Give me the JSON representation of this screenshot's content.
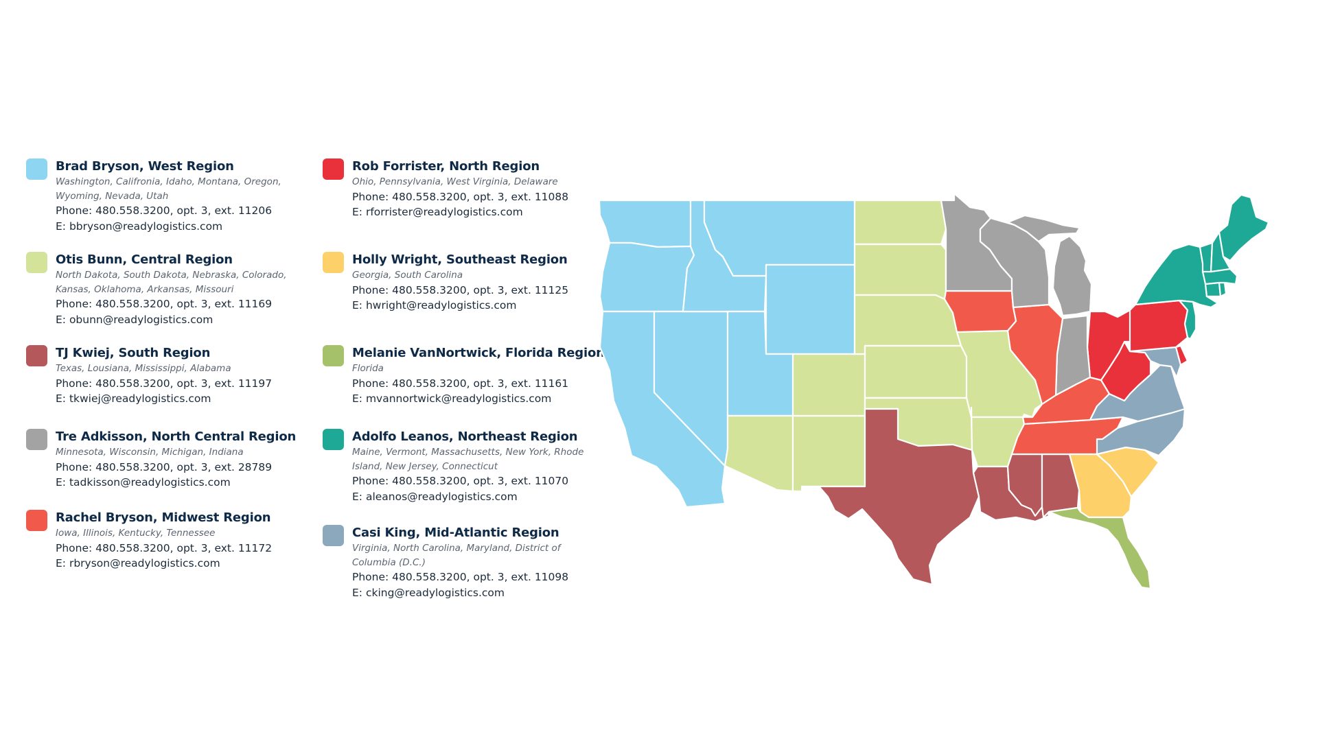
{
  "regions": [
    {
      "id": "west",
      "title": "Brad Bryson, West Region",
      "states": "Washington, Califronia, Idaho, Montana, Oregon, Wyoming, Nevada, Utah",
      "phone": "Phone: 480.558.3200, opt. 3, ext. 11206",
      "email": "E: bbryson@readylogistics.com",
      "color": "#8dd5f0"
    },
    {
      "id": "central",
      "title": "Otis Bunn, Central Region",
      "states": "North Dakota, South Dakota, Nebraska, Colorado, Kansas, Oklahoma, Arkansas, Missouri",
      "phone": "Phone: 480.558.3200, opt. 3, ext. 11169",
      "email": "E: obunn@readylogistics.com",
      "color": "#d3e49a"
    },
    {
      "id": "south",
      "title": "TJ Kwiej, South Region",
      "states": "Texas, Lousiana, Mississippi, Alabama",
      "phone": "Phone: 480.558.3200, opt. 3, ext. 11197",
      "email": "E: tkwiej@readylogistics.com",
      "color": "#b4585b"
    },
    {
      "id": "north-central",
      "title": "Tre Adkisson, North Central Region",
      "states": "Minnesota, Wisconsin, Michigan, Indiana",
      "phone": "Phone: 480.558.3200, opt. 3, ext. 28789",
      "email": "E: tadkisson@readylogistics.com",
      "color": "#a3a3a3"
    },
    {
      "id": "midwest",
      "title": "Rachel Bryson, Midwest Region",
      "states": "Iowa, Illinois, Kentucky, Tennessee",
      "phone": "Phone: 480.558.3200, opt. 3, ext. 11172",
      "email": "E: rbryson@readylogistics.com",
      "color": "#f15a4a"
    },
    {
      "id": "north",
      "title": "Rob Forrister, North Region",
      "states": "Ohio, Pennsylvania, West Virginia, Delaware",
      "phone": "Phone: 480.558.3200, opt. 3, ext. 11088",
      "email": "E: rforrister@readylogistics.com",
      "color": "#e8313b"
    },
    {
      "id": "southeast",
      "title": "Holly Wright, Southeast Region",
      "states": "Georgia, South Carolina",
      "phone": "Phone: 480.558.3200, opt. 3, ext. 11125",
      "email": "E: hwright@readylogistics.com",
      "color": "#fdd069"
    },
    {
      "id": "florida",
      "title": "Melanie VanNortwick, Florida Region",
      "states": "Florida",
      "phone": "Phone: 480.558.3200, opt. 3, ext. 11161",
      "email": "E: mvannortwick@readylogistics.com",
      "color": "#a5c26b"
    },
    {
      "id": "northeast",
      "title": "Adolfo Leanos, Northeast Region",
      "states": "Maine, Vermont, Massachusetts, New York, Rhode Island, New Jersey, Connecticut",
      "phone": "Phone: 480.558.3200, opt. 3, ext. 11070",
      "email": "E: aleanos@readylogistics.com",
      "color": "#1ea996"
    },
    {
      "id": "mid-atlantic",
      "title": "Casi King, Mid-Atlantic Region",
      "states": "Virginia, North Carolina, Maryland, District of Columbia (D.C.)",
      "phone": "Phone: 480.558.3200, opt. 3, ext. 11098",
      "email": "E: cking@readylogistics.com",
      "color": "#8ca8bc"
    }
  ],
  "states": [
    {
      "name": "Washington",
      "region": "west"
    },
    {
      "name": "Oregon",
      "region": "west"
    },
    {
      "name": "California",
      "region": "west"
    },
    {
      "name": "Nevada",
      "region": "west"
    },
    {
      "name": "Idaho",
      "region": "west"
    },
    {
      "name": "Montana",
      "region": "west"
    },
    {
      "name": "Wyoming",
      "region": "west"
    },
    {
      "name": "Utah",
      "region": "west"
    },
    {
      "name": "Arizona",
      "region": "central"
    },
    {
      "name": "New Mexico",
      "region": "central"
    },
    {
      "name": "Colorado",
      "region": "central"
    },
    {
      "name": "North Dakota",
      "region": "central"
    },
    {
      "name": "South Dakota",
      "region": "central"
    },
    {
      "name": "Nebraska",
      "region": "central"
    },
    {
      "name": "Kansas",
      "region": "central"
    },
    {
      "name": "Oklahoma",
      "region": "central"
    },
    {
      "name": "Missouri",
      "region": "central"
    },
    {
      "name": "Arkansas",
      "region": "central"
    },
    {
      "name": "Texas",
      "region": "south"
    },
    {
      "name": "Louisiana",
      "region": "south"
    },
    {
      "name": "Mississippi",
      "region": "south"
    },
    {
      "name": "Alabama",
      "region": "south"
    },
    {
      "name": "Minnesota",
      "region": "north-central"
    },
    {
      "name": "Wisconsin",
      "region": "north-central"
    },
    {
      "name": "Michigan",
      "region": "north-central"
    },
    {
      "name": "Indiana",
      "region": "north-central"
    },
    {
      "name": "Iowa",
      "region": "midwest"
    },
    {
      "name": "Illinois",
      "region": "midwest"
    },
    {
      "name": "Kentucky",
      "region": "midwest"
    },
    {
      "name": "Tennessee",
      "region": "midwest"
    },
    {
      "name": "Ohio",
      "region": "north"
    },
    {
      "name": "Pennsylvania",
      "region": "north"
    },
    {
      "name": "West Virginia",
      "region": "north"
    },
    {
      "name": "Delaware",
      "region": "north"
    },
    {
      "name": "Georgia",
      "region": "southeast"
    },
    {
      "name": "South Carolina",
      "region": "southeast"
    },
    {
      "name": "Florida",
      "region": "florida"
    },
    {
      "name": "Maine",
      "region": "northeast"
    },
    {
      "name": "Vermont",
      "region": "northeast"
    },
    {
      "name": "New Hampshire",
      "region": "northeast"
    },
    {
      "name": "Massachusetts",
      "region": "northeast"
    },
    {
      "name": "New York",
      "region": "northeast"
    },
    {
      "name": "Rhode Island",
      "region": "northeast"
    },
    {
      "name": "Connecticut",
      "region": "northeast"
    },
    {
      "name": "New Jersey",
      "region": "northeast"
    },
    {
      "name": "Virginia",
      "region": "mid-atlantic"
    },
    {
      "name": "North Carolina",
      "region": "mid-atlantic"
    },
    {
      "name": "Maryland",
      "region": "mid-atlantic"
    }
  ]
}
